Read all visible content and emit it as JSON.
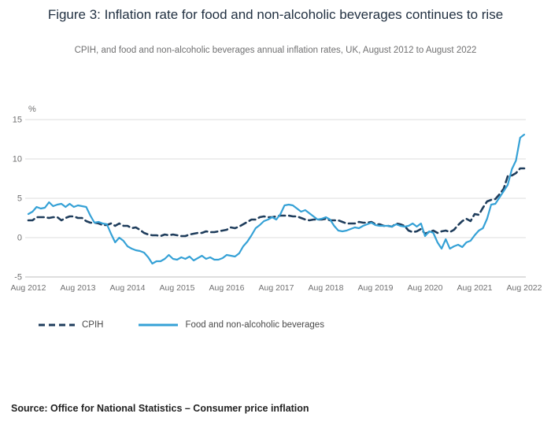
{
  "title": "Figure 3: Inflation rate for food and non-alcoholic beverages continues to rise",
  "subtitle": "CPIH, and food and non-alcoholic beverages annual inflation rates, UK, August 2012 to August 2022",
  "source": "Source: Office for National Statistics – Consumer price inflation",
  "chart_data": {
    "type": "line",
    "unit_label": "%",
    "ylim": [
      -5,
      15
    ],
    "yticks": [
      -5,
      0,
      5,
      10,
      15
    ],
    "grid": true,
    "legend_position": "bottom",
    "x_start": "Aug 2012",
    "x_end": "Aug 2022",
    "x_frequency": "monthly",
    "x_tick_labels": [
      "Aug 2012",
      "Aug 2013",
      "Aug 2014",
      "Aug 2015",
      "Aug 2016",
      "Aug 2017",
      "Aug 2018",
      "Aug 2019",
      "Aug 2020",
      "Aug 2021",
      "Aug 2022"
    ],
    "x_tick_every": 12,
    "series": [
      {
        "name": "CPIH",
        "color": "#1f3d5c",
        "dash": "8 5",
        "width": 2.6,
        "values": [
          2.2,
          2.2,
          2.6,
          2.6,
          2.6,
          2.5,
          2.6,
          2.6,
          2.2,
          2.5,
          2.7,
          2.7,
          2.5,
          2.5,
          2.1,
          1.9,
          1.9,
          1.8,
          1.6,
          1.6,
          1.8,
          1.5,
          1.8,
          1.5,
          1.5,
          1.2,
          1.3,
          1.0,
          0.6,
          0.4,
          0.3,
          0.3,
          0.2,
          0.4,
          0.3,
          0.4,
          0.3,
          0.2,
          0.2,
          0.4,
          0.5,
          0.6,
          0.6,
          0.8,
          0.7,
          0.7,
          0.8,
          0.9,
          1.0,
          1.3,
          1.2,
          1.4,
          1.7,
          2.0,
          2.3,
          2.3,
          2.6,
          2.7,
          2.6,
          2.6,
          2.7,
          2.8,
          2.8,
          2.8,
          2.7,
          2.7,
          2.5,
          2.3,
          2.2,
          2.3,
          2.3,
          2.3,
          2.4,
          2.2,
          2.2,
          2.2,
          2.0,
          1.8,
          1.8,
          1.8,
          2.0,
          1.9,
          1.9,
          2.0,
          1.7,
          1.7,
          1.5,
          1.5,
          1.4,
          1.8,
          1.7,
          1.5,
          0.9,
          0.7,
          0.8,
          1.1,
          0.5,
          0.7,
          0.9,
          0.6,
          0.8,
          0.9,
          0.7,
          1.0,
          1.6,
          2.1,
          2.4,
          2.1,
          3.0,
          2.9,
          3.8,
          4.6,
          4.8,
          4.9,
          5.5,
          6.2,
          7.8,
          7.9,
          8.2,
          8.8,
          8.8
        ]
      },
      {
        "name": "Food and non-alcoholic beverages",
        "color": "#35a1d6",
        "dash": null,
        "width": 2.2,
        "values": [
          3.0,
          3.3,
          3.9,
          3.7,
          3.8,
          4.5,
          4.0,
          4.2,
          4.3,
          3.9,
          4.3,
          3.9,
          4.1,
          4.0,
          3.9,
          2.8,
          1.9,
          2.0,
          1.8,
          1.7,
          0.5,
          -0.6,
          0.0,
          -0.4,
          -1.1,
          -1.4,
          -1.6,
          -1.7,
          -1.9,
          -2.5,
          -3.3,
          -3.0,
          -3.0,
          -2.7,
          -2.2,
          -2.7,
          -2.8,
          -2.5,
          -2.7,
          -2.4,
          -2.9,
          -2.6,
          -2.3,
          -2.7,
          -2.5,
          -2.8,
          -2.8,
          -2.6,
          -2.2,
          -2.3,
          -2.4,
          -2.0,
          -1.1,
          -0.5,
          0.3,
          1.2,
          1.6,
          2.1,
          2.3,
          2.6,
          2.3,
          3.0,
          4.1,
          4.2,
          4.1,
          3.7,
          3.3,
          3.5,
          3.1,
          2.7,
          2.3,
          2.4,
          2.6,
          2.3,
          1.5,
          0.9,
          0.8,
          0.9,
          1.1,
          1.3,
          1.2,
          1.5,
          1.7,
          1.9,
          1.6,
          1.5,
          1.5,
          1.5,
          1.4,
          1.7,
          1.5,
          1.4,
          1.5,
          1.8,
          1.4,
          1.8,
          0.2,
          0.8,
          0.6,
          -0.6,
          -1.4,
          -0.2,
          -1.4,
          -1.1,
          -0.9,
          -1.2,
          -0.6,
          -0.4,
          0.3,
          0.9,
          1.2,
          2.4,
          4.2,
          4.3,
          5.1,
          5.9,
          6.7,
          8.7,
          9.8,
          12.7,
          13.1
        ]
      }
    ]
  }
}
